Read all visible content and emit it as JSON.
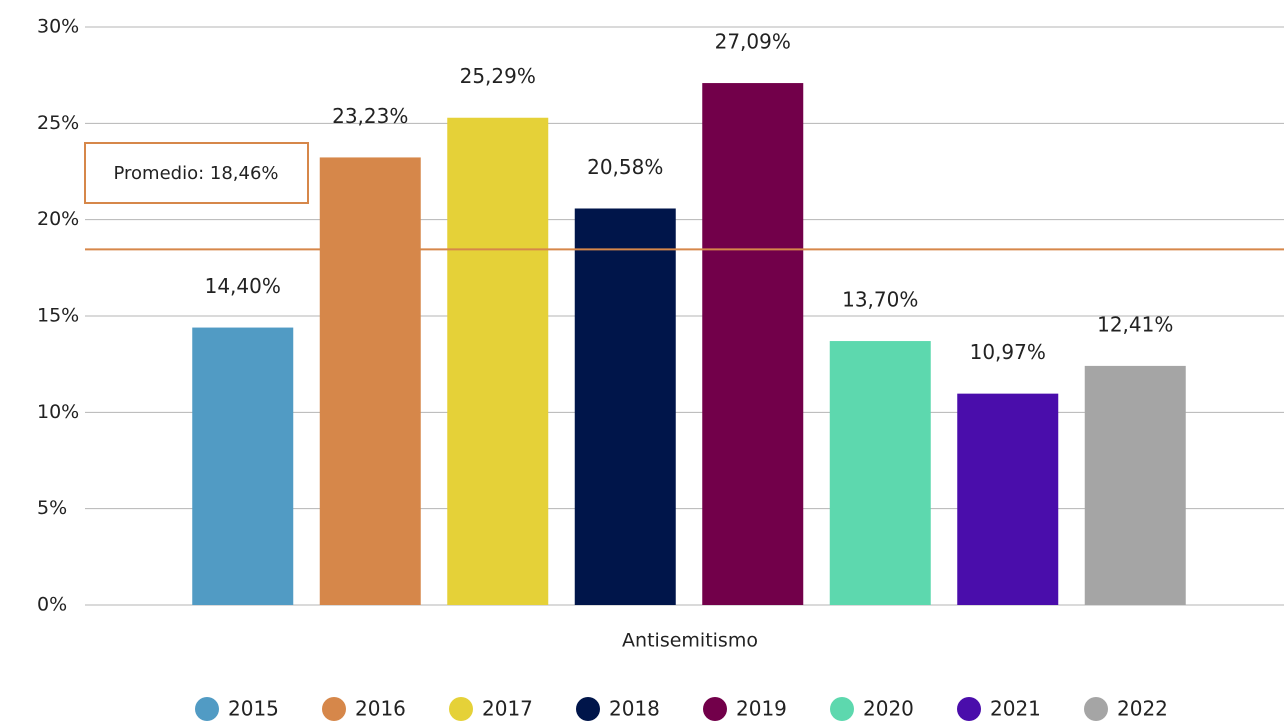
{
  "chart_data": {
    "type": "bar",
    "categories": [
      "Antisemitismo"
    ],
    "series": [
      {
        "name": "2015",
        "color": "#519bc4",
        "values": [
          14.4
        ],
        "value_labels": [
          "14,40%"
        ]
      },
      {
        "name": "2016",
        "color": "#d6874a",
        "values": [
          23.23
        ],
        "value_labels": [
          "23,23%"
        ]
      },
      {
        "name": "2017",
        "color": "#e5d138",
        "values": [
          25.29
        ],
        "value_labels": [
          "25,29%"
        ]
      },
      {
        "name": "2018",
        "color": "#00154a",
        "values": [
          20.58
        ],
        "value_labels": [
          "20,58%"
        ]
      },
      {
        "name": "2019",
        "color": "#72004a",
        "values": [
          27.09
        ],
        "value_labels": [
          "27,09%"
        ]
      },
      {
        "name": "2020",
        "color": "#5dd8ae",
        "values": [
          13.7
        ],
        "value_labels": [
          "13,70%"
        ]
      },
      {
        "name": "2021",
        "color": "#4a0dab",
        "values": [
          10.97
        ],
        "value_labels": [
          "10,97%"
        ]
      },
      {
        "name": "2022",
        "color": "#a5a5a5",
        "values": [
          12.41
        ],
        "value_labels": [
          "12,41%"
        ]
      }
    ],
    "ylim": [
      0,
      30
    ],
    "yticks": [
      {
        "value": 0,
        "label": "0%"
      },
      {
        "value": 5,
        "label": "5%"
      },
      {
        "value": 10,
        "label": "10%"
      },
      {
        "value": 15,
        "label": "15%"
      },
      {
        "value": 20,
        "label": "20%"
      },
      {
        "value": 25,
        "label": "25%"
      },
      {
        "value": 30,
        "label": "30%"
      }
    ],
    "grid": true,
    "legend": "bottom",
    "reference_line": {
      "value": 18.46,
      "label": "Promedio: 18,46%",
      "color": "#d6874a"
    }
  }
}
